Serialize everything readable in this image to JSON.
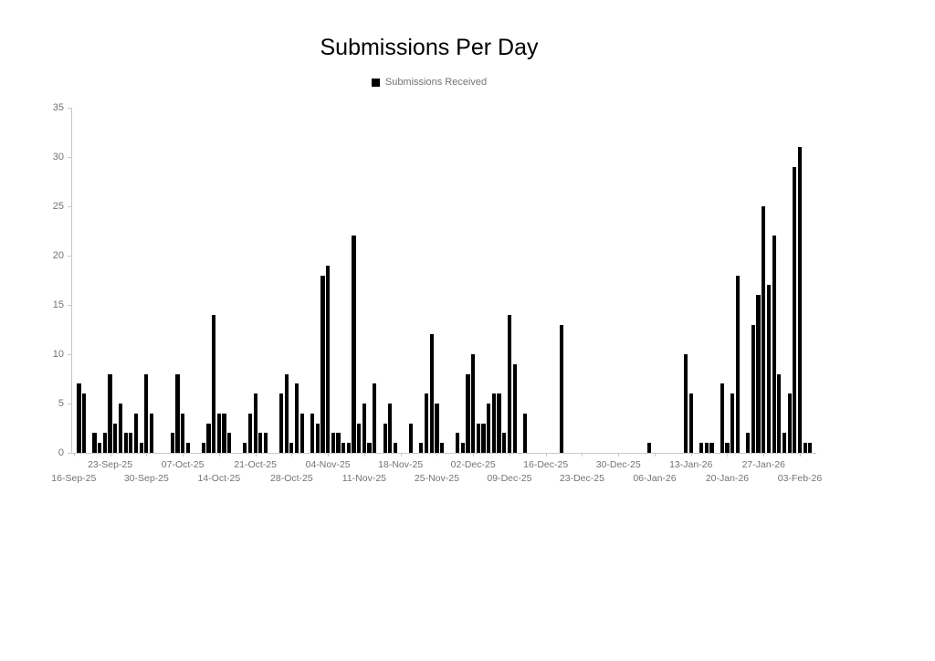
{
  "title": "Submissions Per Day",
  "legend": {
    "label": "Submissions Received",
    "marker_color": "#000000"
  },
  "chart_data": {
    "type": "bar",
    "title": "Submissions Per Day",
    "series_name": "Submissions Received",
    "xlabel": "",
    "ylabel": "",
    "ylim": [
      0,
      35
    ],
    "y_tick_labels": [
      "0",
      "5",
      "10",
      "15",
      "20",
      "25",
      "30",
      "35"
    ],
    "x_start_date": "16-Sep-25",
    "x_end_date": "05-Feb-26",
    "x_tick_interval_days": 7,
    "x_tick_labels_row_upper": [
      "23-Sep-25",
      "07-Oct-25",
      "21-Oct-25",
      "04-Nov-25",
      "18-Nov-25",
      "02-Dec-25",
      "16-Dec-25",
      "30-Dec-25",
      "13-Jan-26",
      "27-Jan-26"
    ],
    "x_tick_labels_row_lower": [
      "16-Sep-25",
      "30-Sep-25",
      "14-Oct-25",
      "28-Oct-25",
      "11-Nov-25",
      "25-Nov-25",
      "09-Dec-25",
      "23-Dec-25",
      "06-Jan-26",
      "20-Jan-26",
      "03-Feb-26"
    ],
    "grid": false,
    "legend_position": "top-center",
    "bar_color": "#000000",
    "axis_color": "#c9c9c9",
    "label_color": "#737373",
    "points": [
      [
        "17-Sep-25",
        7
      ],
      [
        "18-Sep-25",
        6
      ],
      [
        "20-Sep-25",
        2
      ],
      [
        "21-Sep-25",
        1
      ],
      [
        "22-Sep-25",
        2
      ],
      [
        "23-Sep-25",
        8
      ],
      [
        "24-Sep-25",
        3
      ],
      [
        "25-Sep-25",
        5
      ],
      [
        "26-Sep-25",
        2
      ],
      [
        "27-Sep-25",
        2
      ],
      [
        "28-Sep-25",
        4
      ],
      [
        "29-Sep-25",
        1
      ],
      [
        "30-Sep-25",
        8
      ],
      [
        "01-Oct-25",
        4
      ],
      [
        "05-Oct-25",
        2
      ],
      [
        "06-Oct-25",
        8
      ],
      [
        "07-Oct-25",
        4
      ],
      [
        "08-Oct-25",
        1
      ],
      [
        "11-Oct-25",
        1
      ],
      [
        "12-Oct-25",
        3
      ],
      [
        "13-Oct-25",
        14
      ],
      [
        "14-Oct-25",
        4
      ],
      [
        "15-Oct-25",
        4
      ],
      [
        "16-Oct-25",
        2
      ],
      [
        "19-Oct-25",
        1
      ],
      [
        "20-Oct-25",
        4
      ],
      [
        "21-Oct-25",
        6
      ],
      [
        "22-Oct-25",
        2
      ],
      [
        "23-Oct-25",
        2
      ],
      [
        "26-Oct-25",
        6
      ],
      [
        "27-Oct-25",
        8
      ],
      [
        "28-Oct-25",
        1
      ],
      [
        "29-Oct-25",
        7
      ],
      [
        "30-Oct-25",
        4
      ],
      [
        "01-Nov-25",
        4
      ],
      [
        "02-Nov-25",
        3
      ],
      [
        "03-Nov-25",
        18
      ],
      [
        "04-Nov-25",
        19
      ],
      [
        "05-Nov-25",
        2
      ],
      [
        "06-Nov-25",
        2
      ],
      [
        "07-Nov-25",
        1
      ],
      [
        "08-Nov-25",
        1
      ],
      [
        "09-Nov-25",
        22
      ],
      [
        "10-Nov-25",
        3
      ],
      [
        "11-Nov-25",
        5
      ],
      [
        "12-Nov-25",
        1
      ],
      [
        "13-Nov-25",
        7
      ],
      [
        "15-Nov-25",
        3
      ],
      [
        "16-Nov-25",
        5
      ],
      [
        "17-Nov-25",
        1
      ],
      [
        "20-Nov-25",
        3
      ],
      [
        "22-Nov-25",
        1
      ],
      [
        "23-Nov-25",
        6
      ],
      [
        "24-Nov-25",
        12
      ],
      [
        "25-Nov-25",
        5
      ],
      [
        "26-Nov-25",
        1
      ],
      [
        "29-Nov-25",
        2
      ],
      [
        "30-Nov-25",
        1
      ],
      [
        "01-Dec-25",
        8
      ],
      [
        "02-Dec-25",
        10
      ],
      [
        "03-Dec-25",
        3
      ],
      [
        "04-Dec-25",
        3
      ],
      [
        "05-Dec-25",
        5
      ],
      [
        "06-Dec-25",
        6
      ],
      [
        "07-Dec-25",
        6
      ],
      [
        "08-Dec-25",
        2
      ],
      [
        "09-Dec-25",
        14
      ],
      [
        "10-Dec-25",
        9
      ],
      [
        "12-Dec-25",
        4
      ],
      [
        "19-Dec-25",
        13
      ],
      [
        "05-Jan-26",
        1
      ],
      [
        "12-Jan-26",
        10
      ],
      [
        "13-Jan-26",
        6
      ],
      [
        "15-Jan-26",
        1
      ],
      [
        "16-Jan-26",
        1
      ],
      [
        "17-Jan-26",
        1
      ],
      [
        "19-Jan-26",
        7
      ],
      [
        "20-Jan-26",
        1
      ],
      [
        "21-Jan-26",
        6
      ],
      [
        "22-Jan-26",
        18
      ],
      [
        "24-Jan-26",
        2
      ],
      [
        "25-Jan-26",
        13
      ],
      [
        "26-Jan-26",
        16
      ],
      [
        "27-Jan-26",
        25
      ],
      [
        "28-Jan-26",
        17
      ],
      [
        "29-Jan-26",
        22
      ],
      [
        "30-Jan-26",
        8
      ],
      [
        "31-Jan-26",
        2
      ],
      [
        "01-Feb-26",
        6
      ],
      [
        "02-Feb-26",
        29
      ],
      [
        "03-Feb-26",
        31
      ],
      [
        "04-Feb-26",
        1
      ],
      [
        "05-Feb-26",
        1
      ]
    ]
  }
}
